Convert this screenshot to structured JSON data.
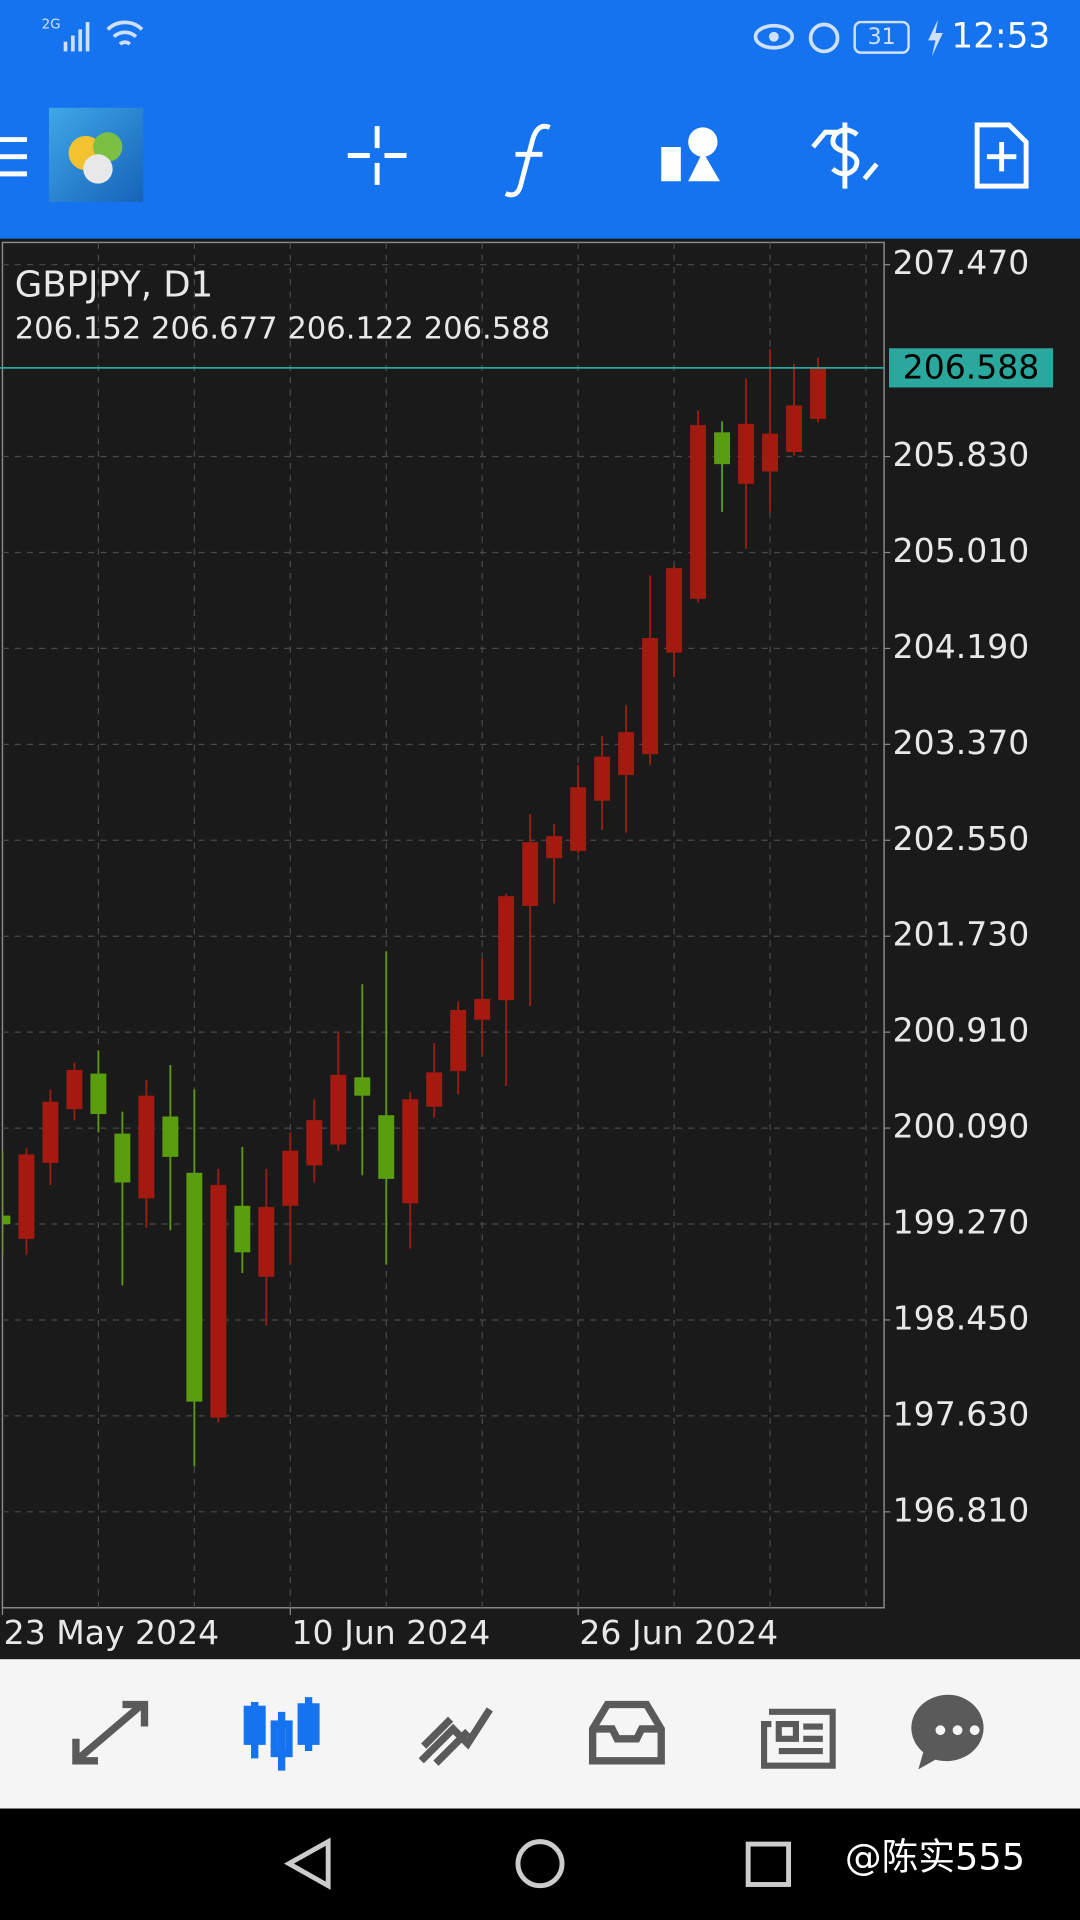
{
  "status_bar": {
    "network": "2G",
    "battery": "31",
    "time": "12:53"
  },
  "watermark": "@陈实555",
  "chart_data": {
    "type": "candlestick",
    "title": "GBPJPY, D1",
    "categories": [
      "23 May 2024",
      null,
      null,
      null,
      null,
      null,
      null,
      null,
      null,
      null,
      null,
      null,
      "10 Jun 2024",
      null,
      null,
      null,
      null,
      null,
      null,
      null,
      null,
      null,
      null,
      null,
      "26 Jun 2024",
      null,
      null,
      null,
      null,
      null,
      null,
      null,
      null,
      null,
      null
    ],
    "open": [
      199.342,
      199.143,
      199.792,
      200.252,
      200.556,
      200.043,
      199.489,
      200.189,
      199.708,
      197.616,
      199.426,
      198.819,
      199.426,
      199.771,
      199.949,
      200.524,
      200.2,
      199.447,
      200.273,
      200.577,
      201.016,
      201.183,
      201.989,
      202.397,
      202.459,
      202.888,
      203.108,
      203.286,
      204.154,
      204.614,
      206.037,
      205.597,
      205.702,
      205.869,
      206.152
    ],
    "high": [
      199.897,
      199.918,
      200.42,
      200.65,
      200.754,
      200.231,
      200.503,
      200.629,
      200.42,
      199.74,
      199.928,
      199.74,
      200.053,
      200.336,
      200.911,
      201.319,
      201.602,
      200.399,
      200.817,
      201.173,
      201.539,
      202.093,
      202.773,
      202.689,
      203.191,
      203.443,
      203.704,
      204.813,
      204.896,
      206.225,
      206.131,
      206.497,
      206.748,
      206.622,
      206.677
    ],
    "low": [
      199.007,
      199.007,
      199.604,
      200.158,
      200.053,
      198.746,
      199.238,
      199.217,
      197.198,
      197.574,
      198.851,
      198.401,
      198.934,
      199.625,
      199.897,
      199.687,
      198.924,
      199.06,
      200.179,
      200.378,
      200.712,
      200.451,
      201.131,
      202.01,
      202.438,
      202.637,
      202.616,
      203.191,
      203.945,
      204.583,
      205.357,
      205.043,
      205.357,
      205.838,
      206.122
    ],
    "close": [
      199.269,
      199.865,
      200.315,
      200.587,
      200.21,
      199.625,
      200.367,
      199.844,
      197.752,
      199.604,
      199.028,
      199.415,
      199.897,
      200.158,
      200.545,
      200.367,
      199.656,
      200.336,
      200.566,
      201.099,
      201.194,
      202.072,
      202.533,
      202.585,
      203.003,
      203.265,
      203.474,
      204.279,
      204.876,
      206.099,
      205.765,
      206.11,
      206.026,
      206.267,
      206.588
    ],
    "up_color": "#a51a10",
    "down_color": "#5a9e10",
    "price_line_color": "#2aa89e",
    "ylim": [
      195.99,
      207.66
    ],
    "yticks": [
      {
        "value": 207.47,
        "label": "207.470"
      },
      {
        "value": 205.83,
        "label": "205.830"
      },
      {
        "value": 205.01,
        "label": "205.010"
      },
      {
        "value": 204.19,
        "label": "204.190"
      },
      {
        "value": 203.37,
        "label": "203.370"
      },
      {
        "value": 202.55,
        "label": "202.550"
      },
      {
        "value": 201.73,
        "label": "201.730"
      },
      {
        "value": 200.91,
        "label": "200.910"
      },
      {
        "value": 200.09,
        "label": "200.090"
      },
      {
        "value": 199.27,
        "label": "199.270"
      },
      {
        "value": 198.45,
        "label": "198.450"
      },
      {
        "value": 197.63,
        "label": "197.630"
      },
      {
        "value": 196.81,
        "label": "196.810"
      }
    ],
    "grid": true
  }
}
